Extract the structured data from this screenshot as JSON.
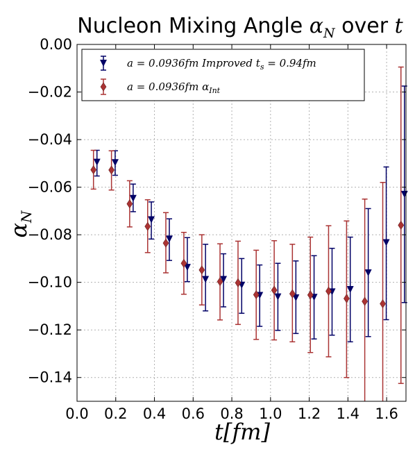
{
  "chart_data": {
    "type": "scatter",
    "title_text": "Nucleon Mixing Angle ",
    "title_math_symbol": "α",
    "title_math_sub": "N",
    "title_suffix": " over ",
    "title_var": "t",
    "xlabel": "t[fm]",
    "ylabel_symbol": "α",
    "ylabel_sub": "N",
    "xlim": [
      0.0,
      1.7
    ],
    "ylim": [
      -0.15,
      0.0
    ],
    "xticks": [
      "0.0",
      "0.2",
      "0.4",
      "0.6",
      "0.8",
      "1.0",
      "1.2",
      "1.4",
      "1.6"
    ],
    "yticks": [
      "0.00",
      "−0.02",
      "−0.04",
      "−0.06",
      "−0.08",
      "−0.10",
      "−0.12",
      "−0.14"
    ],
    "grid": true,
    "legend_position": "top-left",
    "series": [
      {
        "name": "a = 0.0936fm Improved t_s = 0.94fm",
        "legend_parts": [
          "a = 0.0936",
          "fm",
          " Improved ",
          "t",
          "s",
          " = 0.94",
          "fm"
        ],
        "color": "#000066",
        "marker": "triangle-down",
        "x": [
          0.103,
          0.197,
          0.29,
          0.384,
          0.477,
          0.57,
          0.664,
          0.757,
          0.851,
          0.944,
          1.038,
          1.131,
          1.225,
          1.318,
          1.412,
          1.505,
          1.598,
          1.692
        ],
        "y": [
          -0.0495,
          -0.0497,
          -0.0647,
          -0.0737,
          -0.0818,
          -0.0937,
          -0.0988,
          -0.0988,
          -0.1012,
          -0.1055,
          -0.1061,
          -0.1065,
          -0.1063,
          -0.104,
          -0.103,
          -0.096,
          -0.0833,
          -0.063
        ],
        "err_hi": [
          -0.0445,
          -0.0447,
          -0.0587,
          -0.0662,
          -0.0733,
          -0.0812,
          -0.084,
          -0.088,
          -0.09,
          -0.0927,
          -0.092,
          -0.091,
          -0.0888,
          -0.0857,
          -0.081,
          -0.069,
          -0.0515,
          -0.0175
        ],
        "err_lo": [
          -0.0553,
          -0.055,
          -0.0703,
          -0.0818,
          -0.0908,
          -0.0997,
          -0.112,
          -0.1103,
          -0.113,
          -0.1185,
          -0.1202,
          -0.1215,
          -0.1238,
          -0.1222,
          -0.125,
          -0.1228,
          -0.1157,
          -0.1085
        ]
      },
      {
        "name": "a = 0.0936fm α_Int",
        "legend_parts": [
          "a = 0.0936",
          "fm",
          " ",
          "α",
          "Int"
        ],
        "color": "#aa3333",
        "marker": "diamond",
        "x": [
          0.085,
          0.178,
          0.272,
          0.365,
          0.459,
          0.552,
          0.645,
          0.739,
          0.832,
          0.926,
          1.019,
          1.113,
          1.206,
          1.3,
          1.393,
          1.487,
          1.58,
          1.674
        ],
        "y": [
          -0.0527,
          -0.0528,
          -0.067,
          -0.0765,
          -0.0835,
          -0.092,
          -0.0948,
          -0.0997,
          -0.1002,
          -0.1052,
          -0.1033,
          -0.1048,
          -0.1053,
          -0.1037,
          -0.1068,
          -0.108,
          -0.109,
          -0.076
        ],
        "err_hi": [
          -0.0445,
          -0.0447,
          -0.0573,
          -0.0653,
          -0.0707,
          -0.079,
          -0.08,
          -0.0838,
          -0.0827,
          -0.0865,
          -0.0825,
          -0.084,
          -0.081,
          -0.0762,
          -0.0742,
          -0.065,
          -0.058,
          -0.0095
        ],
        "err_lo": [
          -0.0608,
          -0.0612,
          -0.0767,
          -0.0875,
          -0.096,
          -0.105,
          -0.1095,
          -0.1158,
          -0.1177,
          -0.124,
          -0.1242,
          -0.125,
          -0.1295,
          -0.1313,
          -0.14,
          -0.151,
          -0.16,
          -0.1425
        ]
      }
    ]
  }
}
